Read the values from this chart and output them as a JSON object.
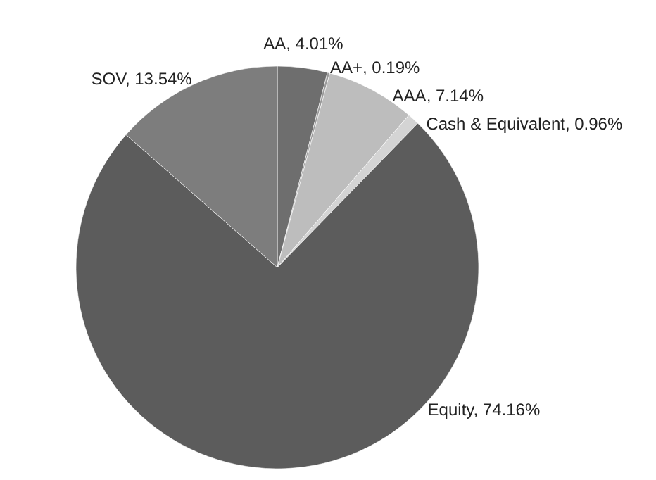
{
  "chart_data": {
    "type": "pie",
    "categories": [
      "AA",
      "AA+",
      "AAA",
      "Cash & Equivalent",
      "Equity",
      "SOV"
    ],
    "values": [
      4.01,
      0.19,
      7.14,
      0.96,
      74.16,
      13.54
    ],
    "colors": [
      "#6e6e6e",
      "#9a9a9a",
      "#bdbdbd",
      "#d4d4d4",
      "#5c5c5c",
      "#7d7d7d"
    ],
    "value_labels": [
      "4.01%",
      "0.19%",
      "7.14%",
      "0.96%",
      "74.16%",
      "13.54%"
    ]
  }
}
